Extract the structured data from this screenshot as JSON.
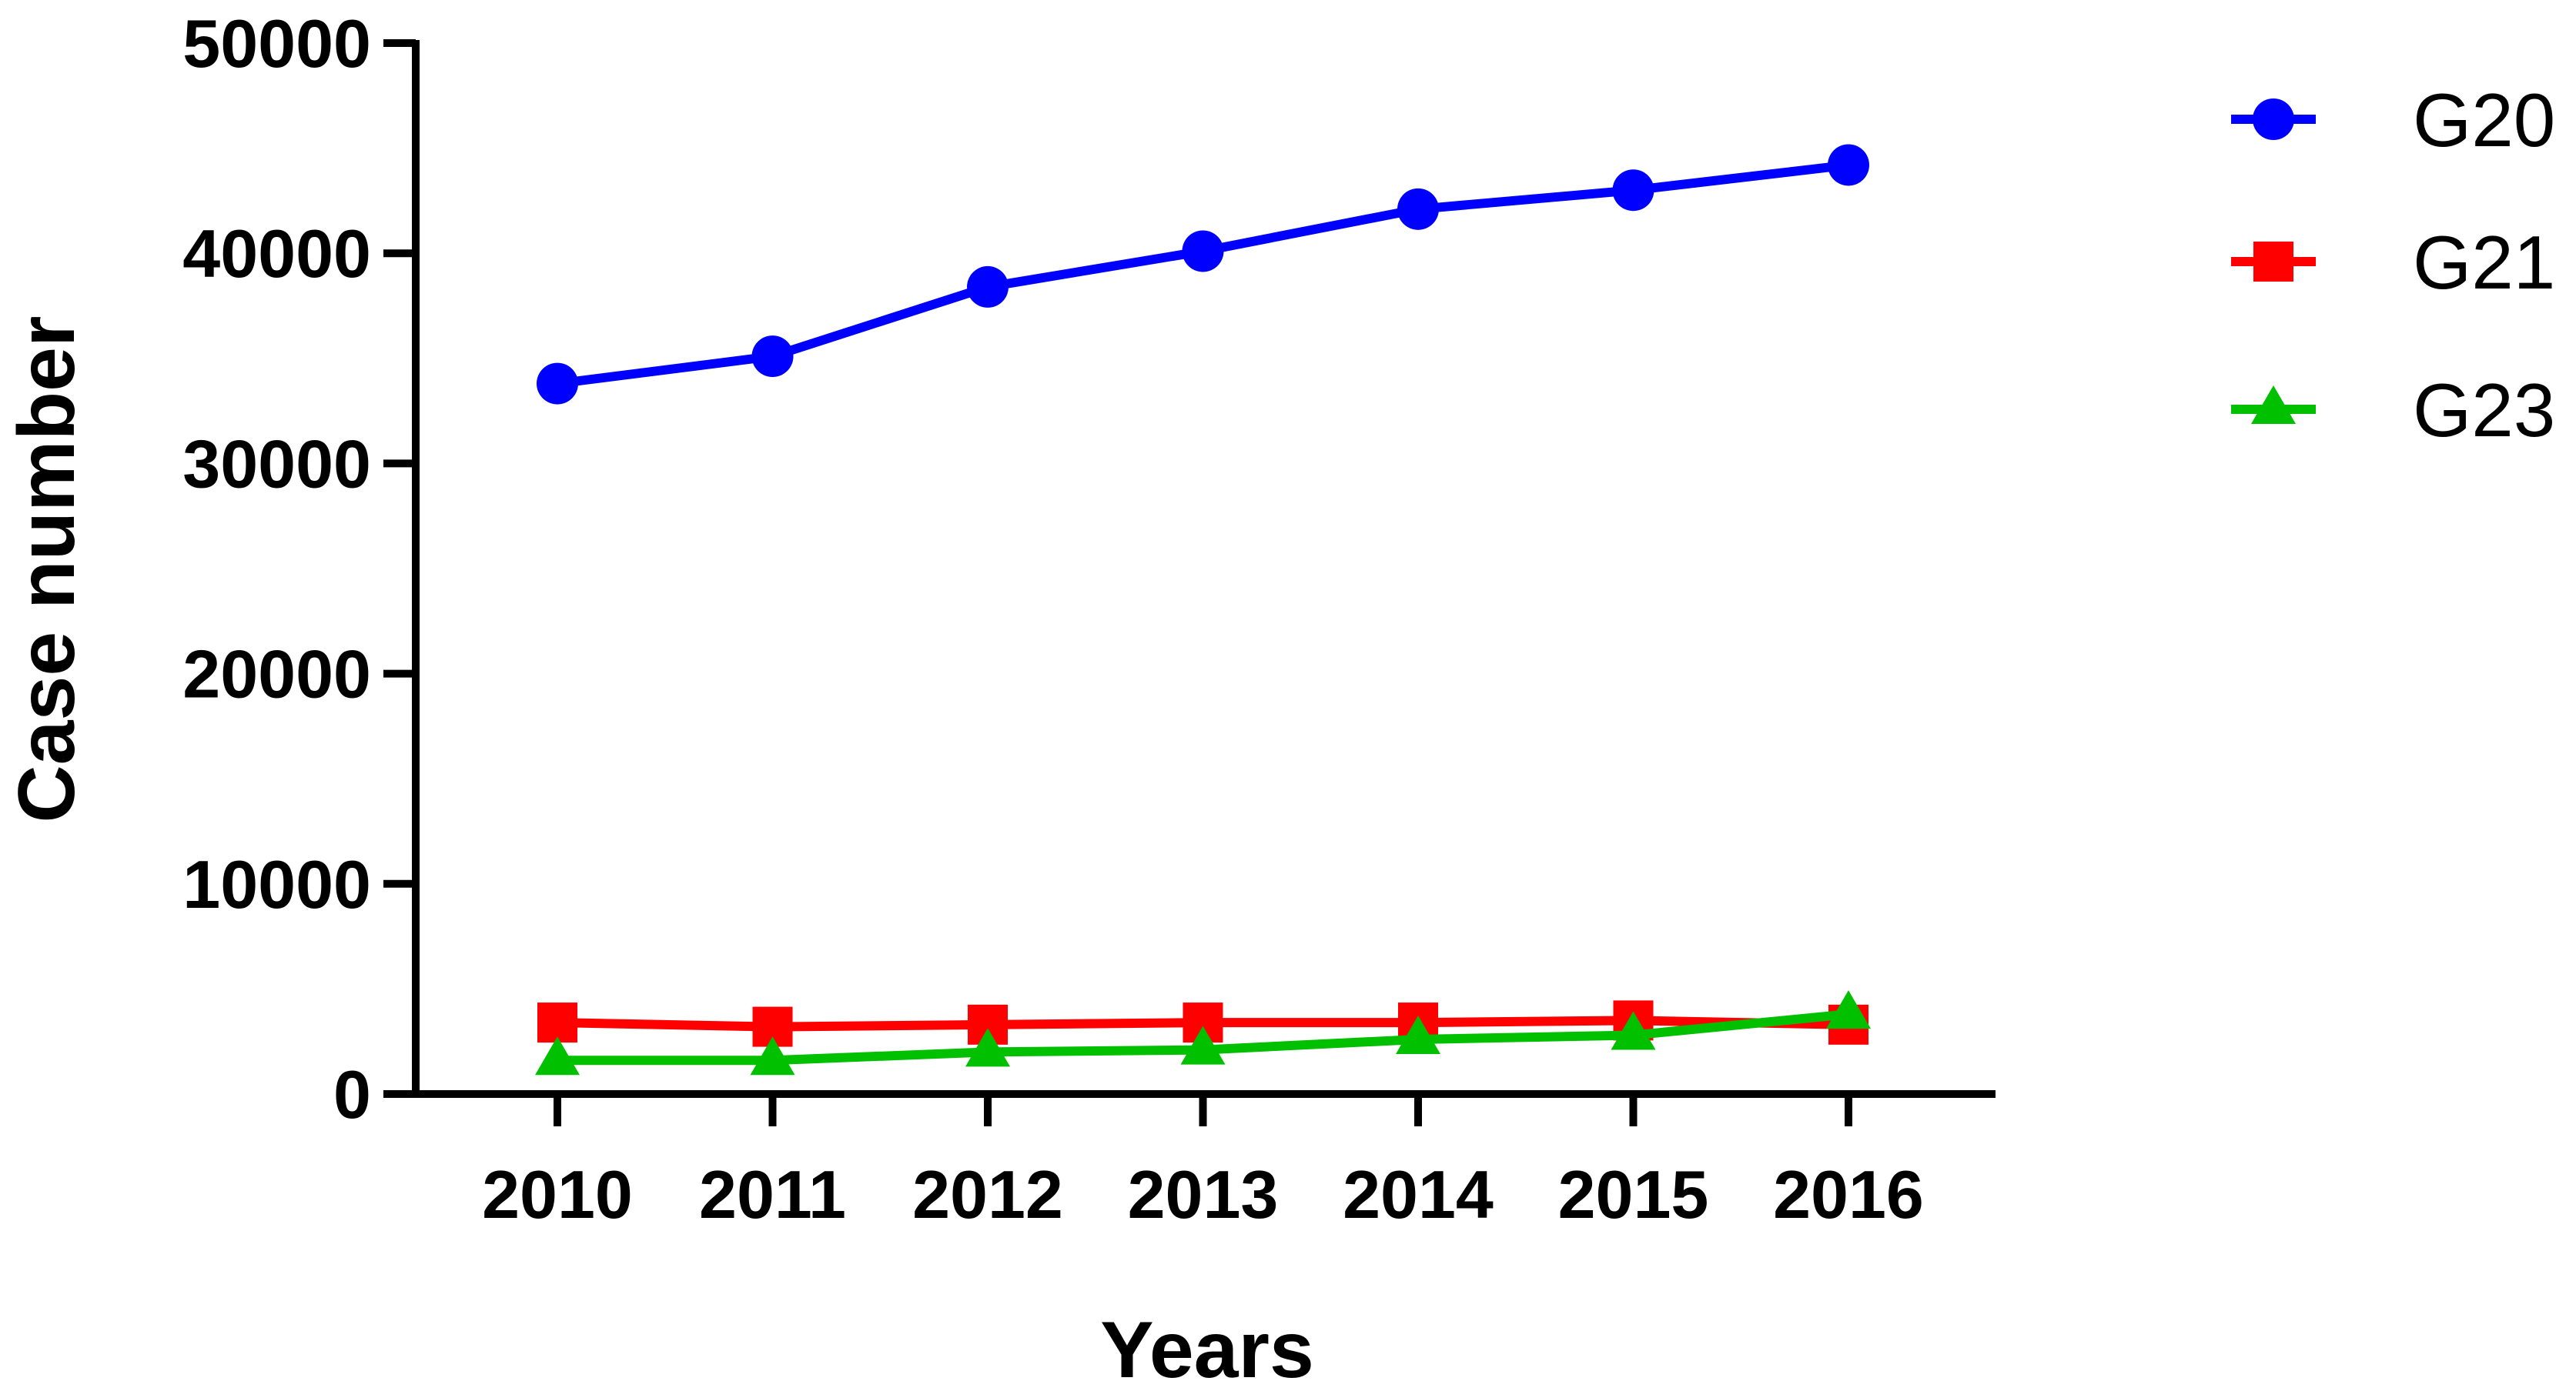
{
  "chart_data": {
    "type": "line",
    "title": "",
    "xlabel": "Years",
    "ylabel": "Case number",
    "categories": [
      "2010",
      "2011",
      "2012",
      "2013",
      "2014",
      "2015",
      "2016"
    ],
    "ylim": [
      0,
      50000
    ],
    "yticks": [
      "0",
      "10000",
      "20000",
      "30000",
      "40000",
      "50000"
    ],
    "grid": false,
    "legend_position": "top-right",
    "series": [
      {
        "name": "G20",
        "color": "#0000ff",
        "marker": "circle",
        "values": [
          33800,
          35100,
          38400,
          40100,
          42100,
          43000,
          44200
        ]
      },
      {
        "name": "G21",
        "color": "#ff0000",
        "marker": "square",
        "values": [
          3400,
          3200,
          3300,
          3400,
          3400,
          3500,
          3300
        ]
      },
      {
        "name": "G23",
        "color": "#00c000",
        "marker": "triangle",
        "values": [
          1600,
          1600,
          2000,
          2100,
          2600,
          2800,
          3800
        ]
      }
    ]
  }
}
